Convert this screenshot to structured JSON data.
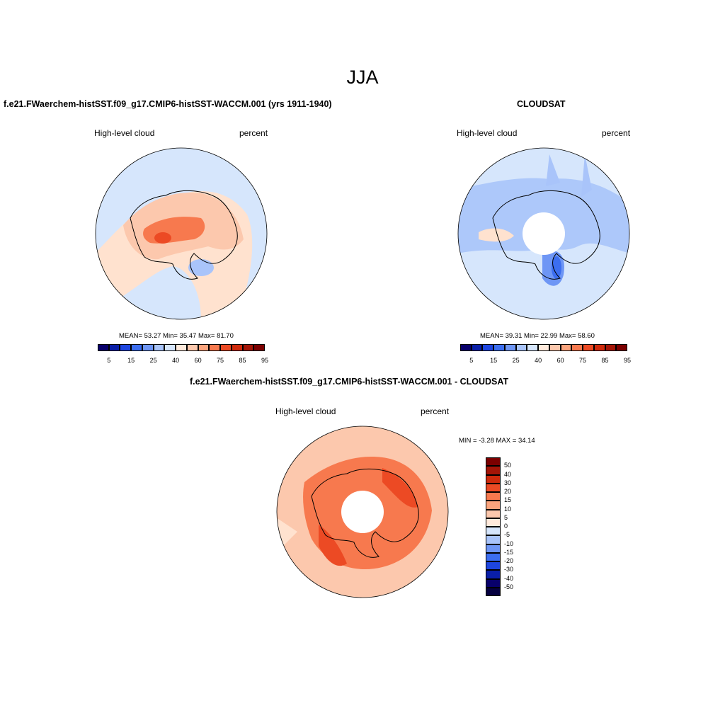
{
  "figure": {
    "title": "JJA"
  },
  "panels": [
    {
      "title": "f.e21.FWaerchem-histSST.f09_g17.CMIP6-histSST-WACCM.001 (yrs 1911-1940)",
      "left_label": "High-level cloud",
      "right_label": "percent",
      "stats": "MEAN=  53.27  Min=  35.47  Max=  81.70"
    },
    {
      "title": "CLOUDSAT",
      "left_label": "High-level cloud",
      "right_label": "percent",
      "stats": "MEAN=  39.31  Min=  22.99  Max=  58.60"
    },
    {
      "title": "f.e21.FWaerchem-histSST.f09_g17.CMIP6-histSST-WACCM.001 - CLOUDSAT",
      "left_label": "High-level cloud",
      "right_label": "percent",
      "stats": "MIN =  -3.28 MAX =  34.14"
    }
  ],
  "colorbar_abs": {
    "ticks": [
      "5",
      "15",
      "25",
      "40",
      "60",
      "75",
      "85",
      "95"
    ],
    "colors": [
      "#08006b",
      "#0a1fa8",
      "#1e46e0",
      "#3c6ef0",
      "#6e96f5",
      "#a9c4fa",
      "#d6e6fc",
      "#ffeadc",
      "#fcc8ad",
      "#fba47d",
      "#f7794e",
      "#ec4a24",
      "#cf2a0c",
      "#a41507",
      "#7b0000"
    ]
  },
  "colorbar_diff": {
    "ticks": [
      "50",
      "40",
      "30",
      "20",
      "15",
      "10",
      "5",
      "0",
      "-5",
      "-10",
      "-15",
      "-20",
      "-30",
      "-40",
      "-50"
    ],
    "colors": [
      "#7b0000",
      "#a41507",
      "#cf2a0c",
      "#ec4a24",
      "#f7794e",
      "#fba47d",
      "#fcc8ad",
      "#ffeadc",
      "#d6e6fc",
      "#a9c4fa",
      "#6e96f5",
      "#3c6ef0",
      "#1e46e0",
      "#0a1fa8",
      "#08006b",
      "#050040"
    ]
  },
  "palette": {
    "ocean_light": "#d6e6fc",
    "peach": "#ffe2cf",
    "salmon": "#fcc8ad",
    "orange": "#f7794e",
    "red": "#ec4a24",
    "blue_light": "#a9c4fa",
    "blue_mid": "#6e96f5",
    "blue_deep": "#3c6ef0"
  }
}
